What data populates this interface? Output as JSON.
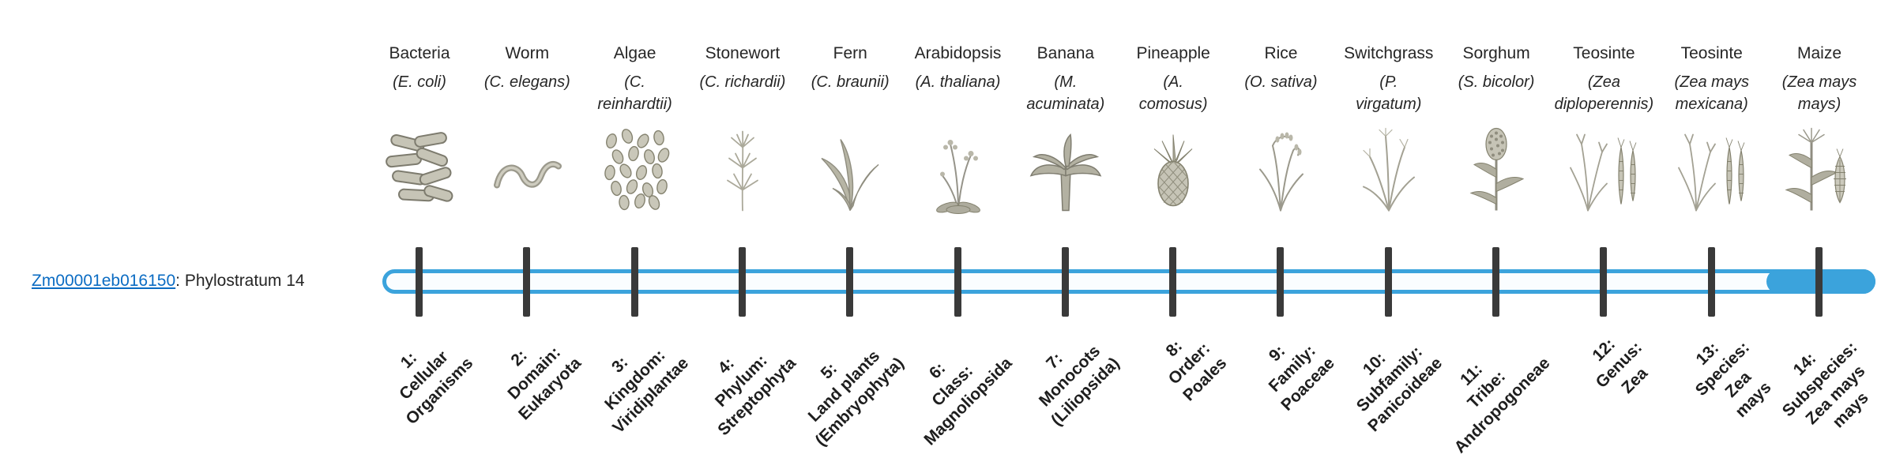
{
  "gene": {
    "id": "Zm00001eb016150",
    "suffix": ": Phylostratum 14"
  },
  "colors": {
    "link": "#0b6cc3",
    "bar": "#3ba3dc",
    "tick": "#3a3a3a"
  },
  "timeline": {
    "filled_phylostratum": 14,
    "total_phylostrata": 14
  },
  "phylostrata": [
    {
      "organism": "Bacteria",
      "species_lines": [
        "(E. coli)"
      ],
      "icon": "bacteria",
      "stage_lines": [
        "1:",
        "Cellular",
        "Organisms"
      ]
    },
    {
      "organism": "Worm",
      "species_lines": [
        "(C. elegans)"
      ],
      "icon": "worm",
      "stage_lines": [
        "2:",
        "Domain:",
        "Eukaryota"
      ]
    },
    {
      "organism": "Algae",
      "species_lines": [
        "(C.",
        "reinhardtii)"
      ],
      "icon": "algae",
      "stage_lines": [
        "3:",
        "Kingdom:",
        "Viridiplantae"
      ]
    },
    {
      "organism": "Stonewort",
      "species_lines": [
        "(C. richardii)"
      ],
      "icon": "stonewort",
      "stage_lines": [
        "4:",
        "Phylum:",
        "Streptophyta"
      ]
    },
    {
      "organism": "Fern",
      "species_lines": [
        "(C. braunii)"
      ],
      "icon": "fern",
      "stage_lines": [
        "5:",
        "Land plants",
        "(Embryophyta)"
      ]
    },
    {
      "organism": "Arabidopsis",
      "species_lines": [
        "(A. thaliana)"
      ],
      "icon": "arabidopsis",
      "stage_lines": [
        "6:",
        "Class:",
        "Magnoliopsida"
      ]
    },
    {
      "organism": "Banana",
      "species_lines": [
        "(M.",
        "acuminata)"
      ],
      "icon": "banana",
      "stage_lines": [
        "7:",
        "Monocots",
        "(Liliopsida)"
      ]
    },
    {
      "organism": "Pineapple",
      "species_lines": [
        "(A.",
        "comosus)"
      ],
      "icon": "pineapple",
      "stage_lines": [
        "8:",
        "Order:",
        "Poales"
      ]
    },
    {
      "organism": "Rice",
      "species_lines": [
        "(O. sativa)"
      ],
      "icon": "rice",
      "stage_lines": [
        "9:",
        "Family:",
        "Poaceae"
      ]
    },
    {
      "organism": "Switchgrass",
      "species_lines": [
        "(P.",
        "virgatum)"
      ],
      "icon": "switchgrass",
      "stage_lines": [
        "10:",
        "Subfamily:",
        "Panicoideae"
      ]
    },
    {
      "organism": "Sorghum",
      "species_lines": [
        "(S. bicolor)"
      ],
      "icon": "sorghum",
      "stage_lines": [
        "11:",
        "Tribe:",
        "Andropogoneae"
      ]
    },
    {
      "organism": "Teosinte",
      "species_lines": [
        "(Zea",
        "diploperennis)"
      ],
      "icon": "teosinte",
      "stage_lines": [
        "12:",
        "Genus:",
        "Zea"
      ]
    },
    {
      "organism": "Teosinte",
      "species_lines": [
        "(Zea mays",
        "mexicana)"
      ],
      "icon": "teosinte",
      "stage_lines": [
        "13:",
        "Species:",
        "Zea",
        "mays"
      ]
    },
    {
      "organism": "Maize",
      "species_lines": [
        "(Zea mays",
        "mays)"
      ],
      "icon": "maize",
      "stage_lines": [
        "14:",
        "Subspecies:",
        "Zea mays",
        "mays"
      ]
    }
  ]
}
